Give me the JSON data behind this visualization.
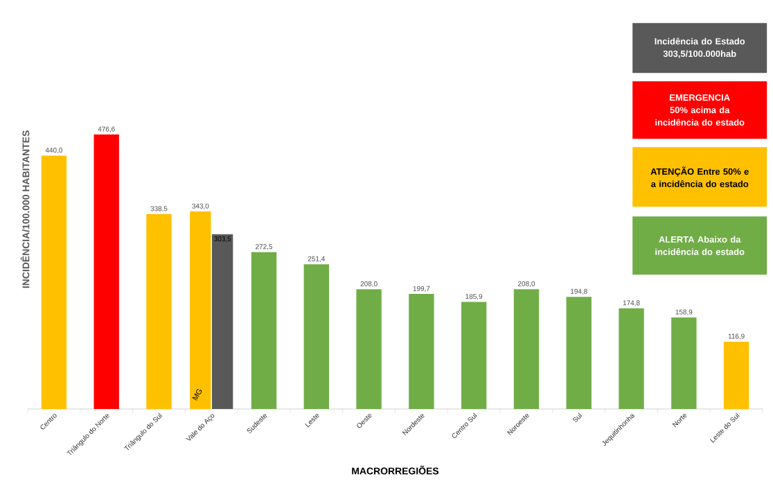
{
  "chart_data": {
    "type": "bar",
    "xlabel": "MACRORREGIÕES",
    "ylabel": "INCIDÊNCIA/100.000 HABITANTES",
    "categories": [
      "Centro",
      "Triângulo do Norte",
      "Triângulo do Sul",
      "Vale do Aço",
      "Sudeste",
      "Leste",
      "Oeste",
      "Nordeste",
      "Centro Sul",
      "Noroeste",
      "Sul",
      "Jequitinhonha",
      "Norte",
      "Leste do Sul"
    ],
    "series": [
      {
        "values": [
          440.0,
          476.6,
          338.5,
          343.0,
          272.5,
          251.4,
          208.0,
          199.7,
          185.9,
          208.0,
          194.8,
          174.8,
          158.9,
          116.9
        ],
        "colors": [
          "#ffc000",
          "#ff0000",
          "#ffc000",
          "#ffc000",
          "#70ad47",
          "#70ad47",
          "#70ad47",
          "#70ad47",
          "#70ad47",
          "#70ad47",
          "#70ad47",
          "#70ad47",
          "#70ad47",
          "#ffc000"
        ],
        "value_labels": [
          "440,0",
          "476,6",
          "338,5",
          "343,0",
          "272,5",
          "251,4",
          "208,0",
          "199,7",
          "185,9",
          "208,0",
          "194,8",
          "174,8",
          "158,9",
          "116,9"
        ]
      },
      {
        "name": "MG",
        "color": "#595959",
        "values": [
          null,
          null,
          null,
          303.5,
          null,
          null,
          null,
          null,
          null,
          null,
          null,
          null,
          null,
          null
        ],
        "value_labels": [
          null,
          null,
          null,
          "303,5",
          null,
          null,
          null,
          null,
          null,
          null,
          null,
          null,
          null,
          null
        ]
      }
    ],
    "annotations": [
      "Incidência do Estado 303,5/100.000hab",
      "EMERGENCIA 50% acima da incidência do estado",
      "ATENÇÃO Entre 50% e a incidência do estado",
      "ALERTA Abaixo da incidência do estado"
    ]
  }
}
